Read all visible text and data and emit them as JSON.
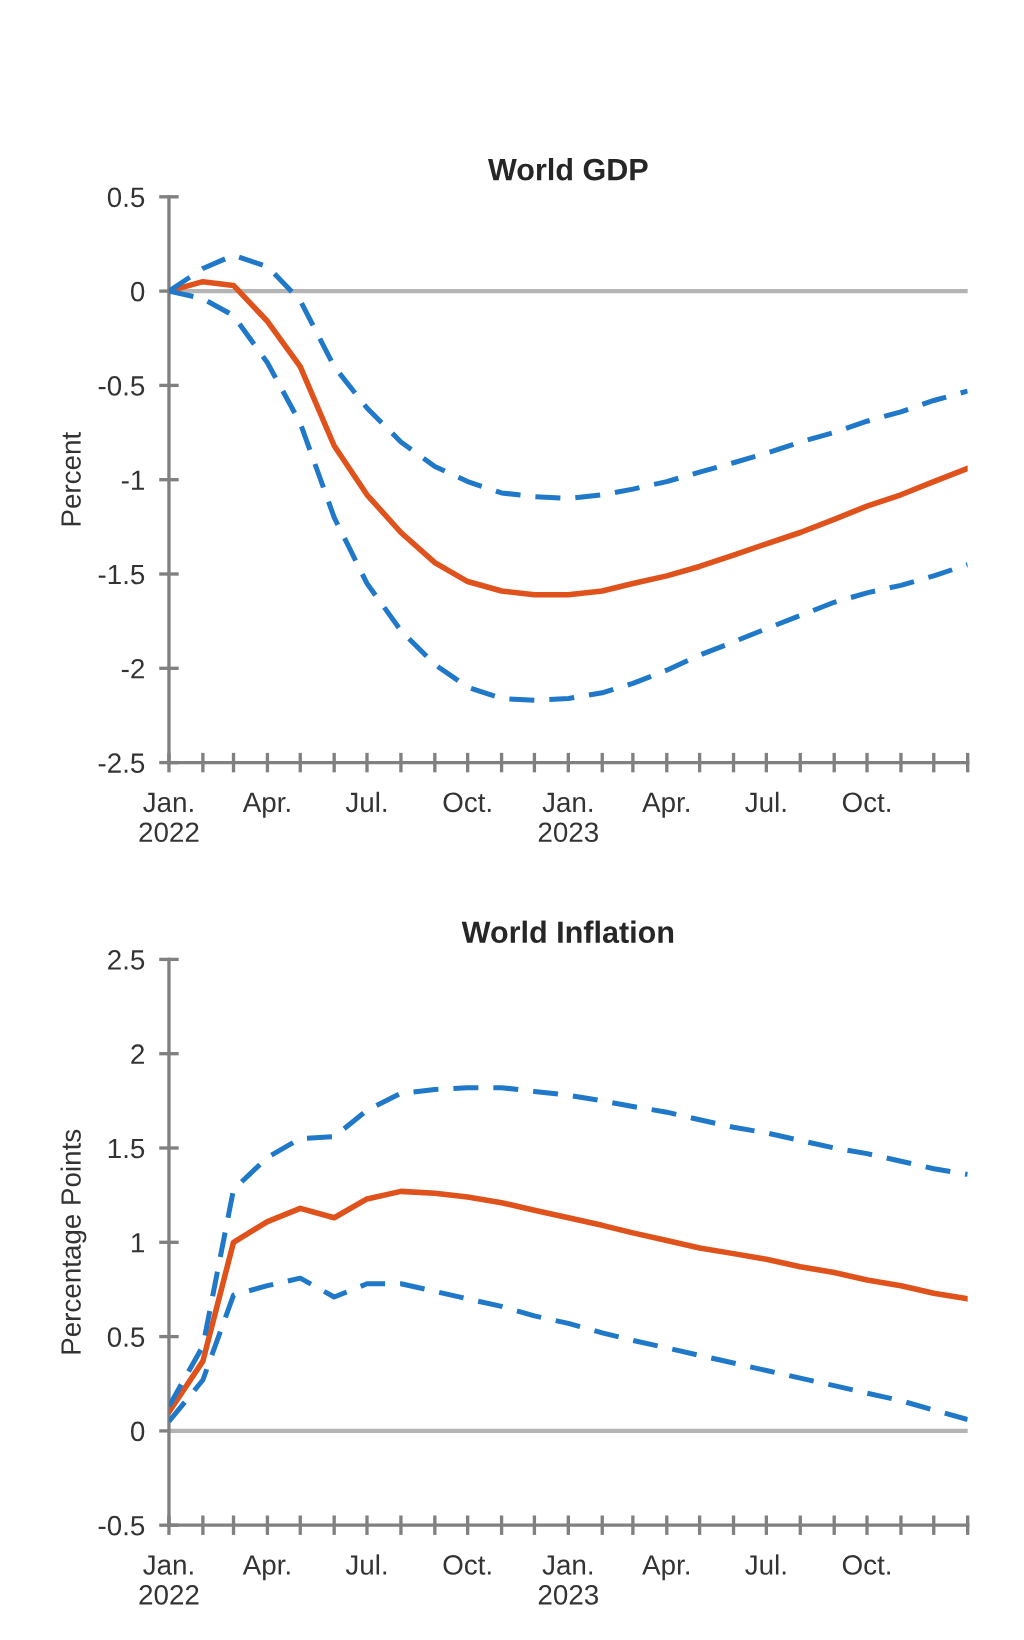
{
  "chart_data": [
    {
      "type": "line",
      "title": "World GDP",
      "ylabel": "Percent",
      "x": [
        "2022-01",
        "2022-02",
        "2022-03",
        "2022-04",
        "2022-05",
        "2022-06",
        "2022-07",
        "2022-08",
        "2022-09",
        "2022-10",
        "2022-11",
        "2022-12",
        "2023-01",
        "2023-02",
        "2023-03",
        "2023-04",
        "2023-05",
        "2023-06",
        "2023-07",
        "2023-08",
        "2023-09",
        "2023-10",
        "2023-11",
        "2023-12",
        "2024-01"
      ],
      "series": [
        {
          "color": "#e0521b",
          "line_style": "solid",
          "values": [
            0.0,
            0.05,
            0.03,
            -0.16,
            -0.4,
            -0.82,
            -1.08,
            -1.28,
            -1.44,
            -1.54,
            -1.59,
            -1.61,
            -1.61,
            -1.59,
            -1.55,
            -1.51,
            -1.46,
            -1.4,
            -1.34,
            -1.28,
            -1.21,
            -1.14,
            -1.08,
            -1.01,
            -0.94
          ]
        },
        {
          "color": "#1f78c8",
          "line_style": "dashed",
          "values": [
            0.0,
            0.12,
            0.19,
            0.13,
            -0.05,
            -0.4,
            -0.62,
            -0.8,
            -0.93,
            -1.01,
            -1.07,
            -1.09,
            -1.1,
            -1.08,
            -1.05,
            -1.01,
            -0.96,
            -0.91,
            -0.86,
            -0.8,
            -0.75,
            -0.69,
            -0.64,
            -0.58,
            -0.53
          ]
        },
        {
          "color": "#1f78c8",
          "line_style": "dashed",
          "values": [
            0.0,
            -0.04,
            -0.13,
            -0.38,
            -0.7,
            -1.2,
            -1.55,
            -1.8,
            -1.98,
            -2.1,
            -2.16,
            -2.17,
            -2.16,
            -2.13,
            -2.08,
            -2.01,
            -1.93,
            -1.86,
            -1.79,
            -1.72,
            -1.65,
            -1.6,
            -1.56,
            -1.51,
            -1.45
          ]
        }
      ],
      "xlim": [
        "2022-01",
        "2024-01"
      ],
      "xticks": [
        {
          "value": "2022-01",
          "label": "Jan.\n2022"
        },
        {
          "value": "2022-02",
          "label": null
        },
        {
          "value": "2022-03",
          "label": null
        },
        {
          "value": "2022-04",
          "label": "Apr."
        },
        {
          "value": "2022-05",
          "label": null
        },
        {
          "value": "2022-06",
          "label": null
        },
        {
          "value": "2022-07",
          "label": "Jul."
        },
        {
          "value": "2022-08",
          "label": null
        },
        {
          "value": "2022-09",
          "label": null
        },
        {
          "value": "2022-10",
          "label": "Oct."
        },
        {
          "value": "2022-11",
          "label": null
        },
        {
          "value": "2022-12",
          "label": null
        },
        {
          "value": "2023-01",
          "label": "Jan.\n2023"
        },
        {
          "value": "2023-02",
          "label": null
        },
        {
          "value": "2023-03",
          "label": null
        },
        {
          "value": "2023-04",
          "label": "Apr."
        },
        {
          "value": "2023-05",
          "label": null
        },
        {
          "value": "2023-06",
          "label": null
        },
        {
          "value": "2023-07",
          "label": "Jul."
        },
        {
          "value": "2023-08",
          "label": null
        },
        {
          "value": "2023-09",
          "label": null
        },
        {
          "value": "2023-10",
          "label": "Oct."
        },
        {
          "value": "2023-11",
          "label": null
        },
        {
          "value": "2023-12",
          "label": null
        },
        {
          "value": "2024-01",
          "label": null
        }
      ],
      "ylim": [
        -2.5,
        0.5
      ],
      "yticks": [
        -2.5,
        -2,
        -1.5,
        -1,
        -0.5,
        0,
        0.5
      ],
      "ref_lines": [
        {
          "axis": "y",
          "value": 0,
          "color": "#b4b4b4"
        }
      ],
      "grid": false,
      "legend": false
    },
    {
      "type": "line",
      "title": "World Inflation",
      "ylabel": "Percentage Points",
      "x": [
        "2022-01",
        "2022-02",
        "2022-03",
        "2022-04",
        "2022-05",
        "2022-06",
        "2022-07",
        "2022-08",
        "2022-09",
        "2022-10",
        "2022-11",
        "2022-12",
        "2023-01",
        "2023-02",
        "2023-03",
        "2023-04",
        "2023-05",
        "2023-06",
        "2023-07",
        "2023-08",
        "2023-09",
        "2023-10",
        "2023-11",
        "2023-12",
        "2024-01"
      ],
      "series": [
        {
          "color": "#e0521b",
          "line_style": "solid",
          "values": [
            0.1,
            0.37,
            1.0,
            1.11,
            1.18,
            1.13,
            1.23,
            1.27,
            1.26,
            1.24,
            1.21,
            1.17,
            1.13,
            1.09,
            1.05,
            1.01,
            0.97,
            0.94,
            0.91,
            0.87,
            0.84,
            0.8,
            0.77,
            0.73,
            0.7
          ]
        },
        {
          "color": "#1f78c8",
          "line_style": "dashed",
          "values": [
            0.13,
            0.45,
            1.28,
            1.45,
            1.55,
            1.56,
            1.7,
            1.79,
            1.81,
            1.82,
            1.82,
            1.8,
            1.78,
            1.75,
            1.72,
            1.69,
            1.65,
            1.61,
            1.58,
            1.54,
            1.5,
            1.47,
            1.43,
            1.39,
            1.36
          ]
        },
        {
          "color": "#1f78c8",
          "line_style": "dashed",
          "values": [
            0.05,
            0.27,
            0.72,
            0.77,
            0.81,
            0.71,
            0.78,
            0.78,
            0.74,
            0.7,
            0.66,
            0.61,
            0.57,
            0.52,
            0.48,
            0.44,
            0.4,
            0.36,
            0.32,
            0.28,
            0.24,
            0.2,
            0.16,
            0.11,
            0.06
          ]
        }
      ],
      "xlim": [
        "2022-01",
        "2024-01"
      ],
      "xticks": [
        {
          "value": "2022-01",
          "label": "Jan.\n2022"
        },
        {
          "value": "2022-02",
          "label": null
        },
        {
          "value": "2022-03",
          "label": null
        },
        {
          "value": "2022-04",
          "label": "Apr."
        },
        {
          "value": "2022-05",
          "label": null
        },
        {
          "value": "2022-06",
          "label": null
        },
        {
          "value": "2022-07",
          "label": "Jul."
        },
        {
          "value": "2022-08",
          "label": null
        },
        {
          "value": "2022-09",
          "label": null
        },
        {
          "value": "2022-10",
          "label": "Oct."
        },
        {
          "value": "2022-11",
          "label": null
        },
        {
          "value": "2022-12",
          "label": null
        },
        {
          "value": "2023-01",
          "label": "Jan.\n2023"
        },
        {
          "value": "2023-02",
          "label": null
        },
        {
          "value": "2023-03",
          "label": null
        },
        {
          "value": "2023-04",
          "label": "Apr."
        },
        {
          "value": "2023-05",
          "label": null
        },
        {
          "value": "2023-06",
          "label": null
        },
        {
          "value": "2023-07",
          "label": "Jul."
        },
        {
          "value": "2023-08",
          "label": null
        },
        {
          "value": "2023-09",
          "label": null
        },
        {
          "value": "2023-10",
          "label": "Oct."
        },
        {
          "value": "2023-11",
          "label": null
        },
        {
          "value": "2023-12",
          "label": null
        },
        {
          "value": "2024-01",
          "label": null
        }
      ],
      "ylim": [
        -0.5,
        2.5
      ],
      "yticks": [
        -0.5,
        0,
        0.5,
        1,
        1.5,
        2,
        2.5
      ],
      "ref_lines": [
        {
          "axis": "y",
          "value": 0,
          "color": "#b4b4b4"
        }
      ],
      "grid": false,
      "legend": false
    }
  ]
}
